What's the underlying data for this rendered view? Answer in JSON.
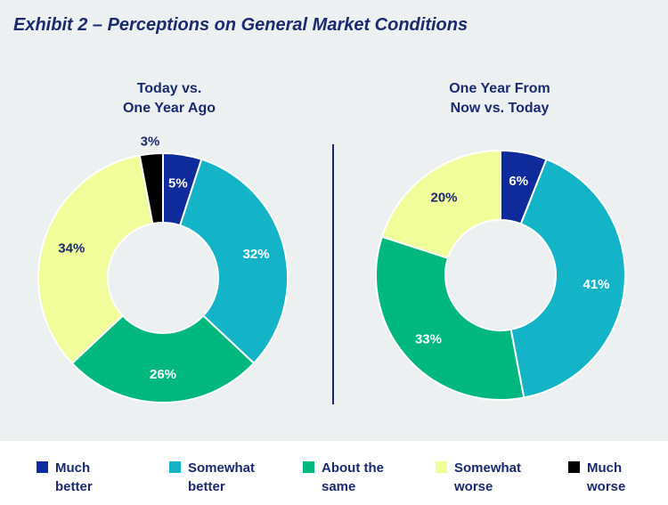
{
  "title": "Exhibit 2 – Perceptions on General Market Conditions",
  "legend": [
    {
      "line1": "Much",
      "line2": "better",
      "color": "#0f2a9a"
    },
    {
      "line1": "Somewhat",
      "line2": "better",
      "color": "#14b4c8"
    },
    {
      "line1": "About the",
      "line2": "same",
      "color": "#00b87e"
    },
    {
      "line1": "Somewhat",
      "line2": "worse",
      "color": "#f1fd9a"
    },
    {
      "line1": "Much",
      "line2": "worse",
      "color": "#000000"
    }
  ],
  "chart_data": [
    {
      "type": "pie",
      "title_lines": [
        "Today vs.",
        "One Year Ago"
      ],
      "categories": [
        "Much better",
        "Somewhat better",
        "About the same",
        "Somewhat worse",
        "Much worse"
      ],
      "values": [
        5,
        32,
        26,
        34,
        3
      ],
      "labels": [
        "5%",
        "32%",
        "26%",
        "34%",
        "3%"
      ]
    },
    {
      "type": "pie",
      "title_lines": [
        "One Year From",
        "Now vs. Today"
      ],
      "categories": [
        "Much better",
        "Somewhat better",
        "About the same",
        "Somewhat worse"
      ],
      "values": [
        6,
        41,
        33,
        20
      ],
      "labels": [
        "6%",
        "41%",
        "33%",
        "20%"
      ]
    }
  ]
}
